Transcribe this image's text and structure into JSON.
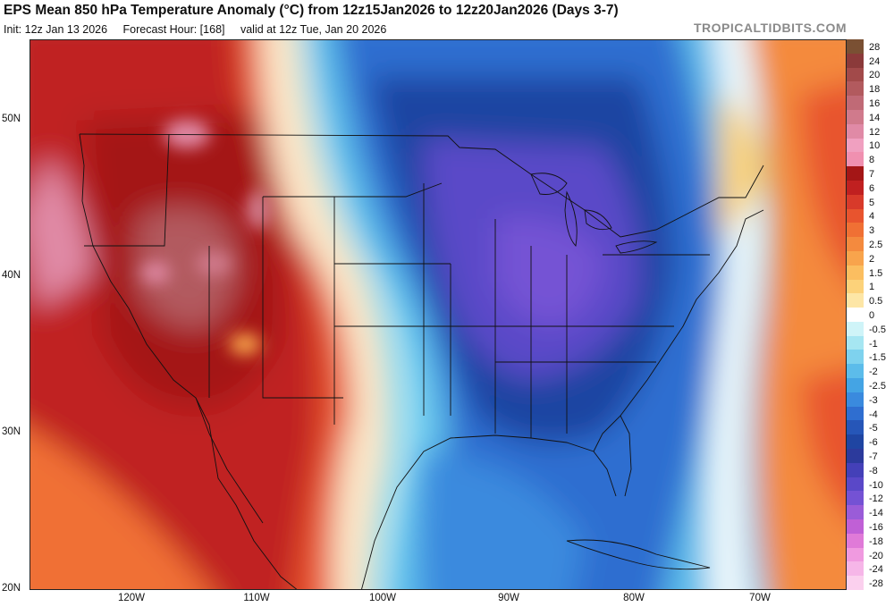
{
  "header": {
    "title": "EPS Mean 850 hPa Temperature Anomaly (°C) from 12z15Jan2026 to 12z20Jan2026 (Days 3-7)",
    "init": "Init: 12z Jan 13 2026",
    "forecast_hour": "Forecast Hour: [168]",
    "valid": "valid at 12z Tue, Jan 20 2026",
    "credit": "TROPICALTIDBITS.COM"
  },
  "axes": {
    "lat_labels": [
      "50N",
      "40N",
      "30N",
      "20N"
    ],
    "lon_labels": [
      "120W",
      "110W",
      "100W",
      "90W",
      "80W",
      "70W"
    ]
  },
  "colorbar": {
    "levels": [
      "28",
      "24",
      "20",
      "18",
      "16",
      "14",
      "12",
      "10",
      "8",
      "7",
      "6",
      "5",
      "4",
      "3",
      "2.5",
      "2",
      "1.5",
      "1",
      "0.5",
      "0",
      "-0.5",
      "-1",
      "-1.5",
      "-2",
      "-2.5",
      "-3",
      "-4",
      "-5",
      "-6",
      "-7",
      "-8",
      "-10",
      "-12",
      "-14",
      "-16",
      "-18",
      "-20",
      "-24",
      "-28"
    ],
    "colors": [
      "#7a5033",
      "#8b3a3a",
      "#a24a4a",
      "#b25a5e",
      "#c06a76",
      "#d07a8c",
      "#e08aa6",
      "#f0a0c0",
      "#f090b0",
      "#a41616",
      "#c02020",
      "#d83a2a",
      "#e8542e",
      "#f07034",
      "#f48a3e",
      "#f8a44c",
      "#fbbe60",
      "#fcd27a",
      "#fde6a6",
      "#ffffff",
      "#cff4f8",
      "#a6e6f2",
      "#7ed2ee",
      "#5cbcea",
      "#44a4e4",
      "#3a8ade",
      "#2f6ed0",
      "#2656b8",
      "#1f45a2",
      "#2c3a9c",
      "#4440b8",
      "#5a48c8",
      "#7452d4",
      "#9a5cd8",
      "#c060d6",
      "#e07ad8",
      "#f09ae0",
      "#f6b6e8",
      "#fbd0ee"
    ]
  }
}
